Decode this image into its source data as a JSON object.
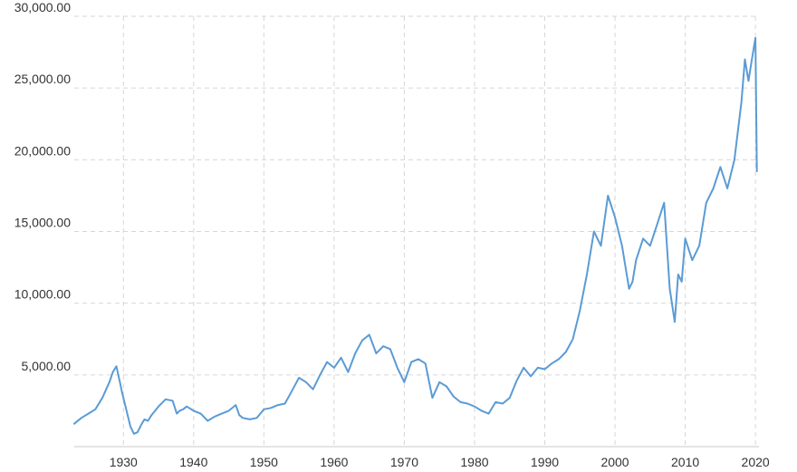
{
  "chart_data": {
    "type": "line",
    "title": "",
    "xlabel": "",
    "ylabel": "",
    "xlim": [
      1923,
      2020.5
    ],
    "ylim": [
      0,
      30000
    ],
    "grid": true,
    "legend": "none",
    "line_color": "#5b9bd5",
    "grid_color": "#d6d6d6",
    "x_ticks": [
      {
        "value": 1930,
        "label": "1930"
      },
      {
        "value": 1940,
        "label": "1940"
      },
      {
        "value": 1950,
        "label": "1950"
      },
      {
        "value": 1960,
        "label": "1960"
      },
      {
        "value": 1970,
        "label": "1970"
      },
      {
        "value": 1980,
        "label": "1980"
      },
      {
        "value": 1990,
        "label": "1990"
      },
      {
        "value": 2000,
        "label": "2000"
      },
      {
        "value": 2010,
        "label": "2010"
      },
      {
        "value": 2020,
        "label": "2020"
      }
    ],
    "y_ticks": [
      {
        "value": 5000,
        "label": "5,000.00"
      },
      {
        "value": 10000,
        "label": "10,000.00"
      },
      {
        "value": 15000,
        "label": "15,000.00"
      },
      {
        "value": 20000,
        "label": "20,000.00"
      },
      {
        "value": 25000,
        "label": "25,000.00"
      },
      {
        "value": 30000,
        "label": "30,000.00"
      }
    ],
    "series": [
      {
        "color": "#5b9bd5",
        "x": [
          1923.0,
          1924.0,
          1925.0,
          1926.0,
          1927.0,
          1928.0,
          1928.5,
          1929.0,
          1929.5,
          1929.8,
          1930.2,
          1930.6,
          1931.0,
          1931.5,
          1932.0,
          1932.5,
          1933.0,
          1933.5,
          1934.0,
          1935.0,
          1936.0,
          1937.0,
          1937.6,
          1938.0,
          1938.5,
          1939.0,
          1940.0,
          1941.0,
          1942.0,
          1943.0,
          1944.0,
          1945.0,
          1946.0,
          1946.5,
          1947.0,
          1948.0,
          1949.0,
          1950.0,
          1951.0,
          1952.0,
          1953.0,
          1954.0,
          1955.0,
          1956.0,
          1957.0,
          1958.0,
          1959.0,
          1960.0,
          1961.0,
          1962.0,
          1963.0,
          1964.0,
          1965.0,
          1966.0,
          1967.0,
          1968.0,
          1969.0,
          1970.0,
          1971.0,
          1972.0,
          1973.0,
          1974.0,
          1975.0,
          1976.0,
          1977.0,
          1978.0,
          1979.0,
          1980.0,
          1981.0,
          1982.0,
          1983.0,
          1984.0,
          1985.0,
          1986.0,
          1987.0,
          1988.0,
          1989.0,
          1990.0,
          1991.0,
          1992.0,
          1993.0,
          1994.0,
          1995.0,
          1996.0,
          1997.0,
          1998.0,
          1999.0,
          2000.0,
          2001.0,
          2001.5,
          2002.0,
          2002.5,
          2003.0,
          2004.0,
          2005.0,
          2006.0,
          2007.0,
          2007.8,
          2008.5,
          2009.0,
          2009.5,
          2010.0,
          2011.0,
          2012.0,
          2013.0,
          2014.0,
          2015.0,
          2016.0,
          2017.0,
          2018.0,
          2018.5,
          2019.0,
          2019.5,
          2020.0,
          2020.2
        ],
        "y": [
          1600,
          2000,
          2300,
          2600,
          3400,
          4500,
          5200,
          5600,
          4500,
          3800,
          3000,
          2200,
          1400,
          900,
          1000,
          1500,
          1900,
          1800,
          2200,
          2800,
          3300,
          3200,
          2300,
          2500,
          2600,
          2800,
          2500,
          2300,
          1800,
          2100,
          2300,
          2500,
          2900,
          2200,
          2000,
          1900,
          2000,
          2600,
          2700,
          2900,
          3000,
          3900,
          4800,
          4500,
          4000,
          5000,
          5900,
          5500,
          6200,
          5200,
          6500,
          7400,
          7800,
          6500,
          7000,
          6800,
          5500,
          4500,
          5900,
          6100,
          5800,
          3400,
          4500,
          4200,
          3500,
          3100,
          3000,
          2800,
          2500,
          2300,
          3100,
          3000,
          3400,
          4600,
          5500,
          4900,
          5500,
          5400,
          5800,
          6100,
          6600,
          7500,
          9500,
          12000,
          15000,
          14000,
          17500,
          16000,
          14000,
          12500,
          11000,
          11500,
          13000,
          14500,
          14000,
          15500,
          17000,
          11000,
          8700,
          12000,
          11500,
          14500,
          13000,
          14000,
          17000,
          18000,
          19500,
          18000,
          20000,
          24000,
          27000,
          25500,
          27000,
          28500,
          19200
        ]
      }
    ]
  }
}
